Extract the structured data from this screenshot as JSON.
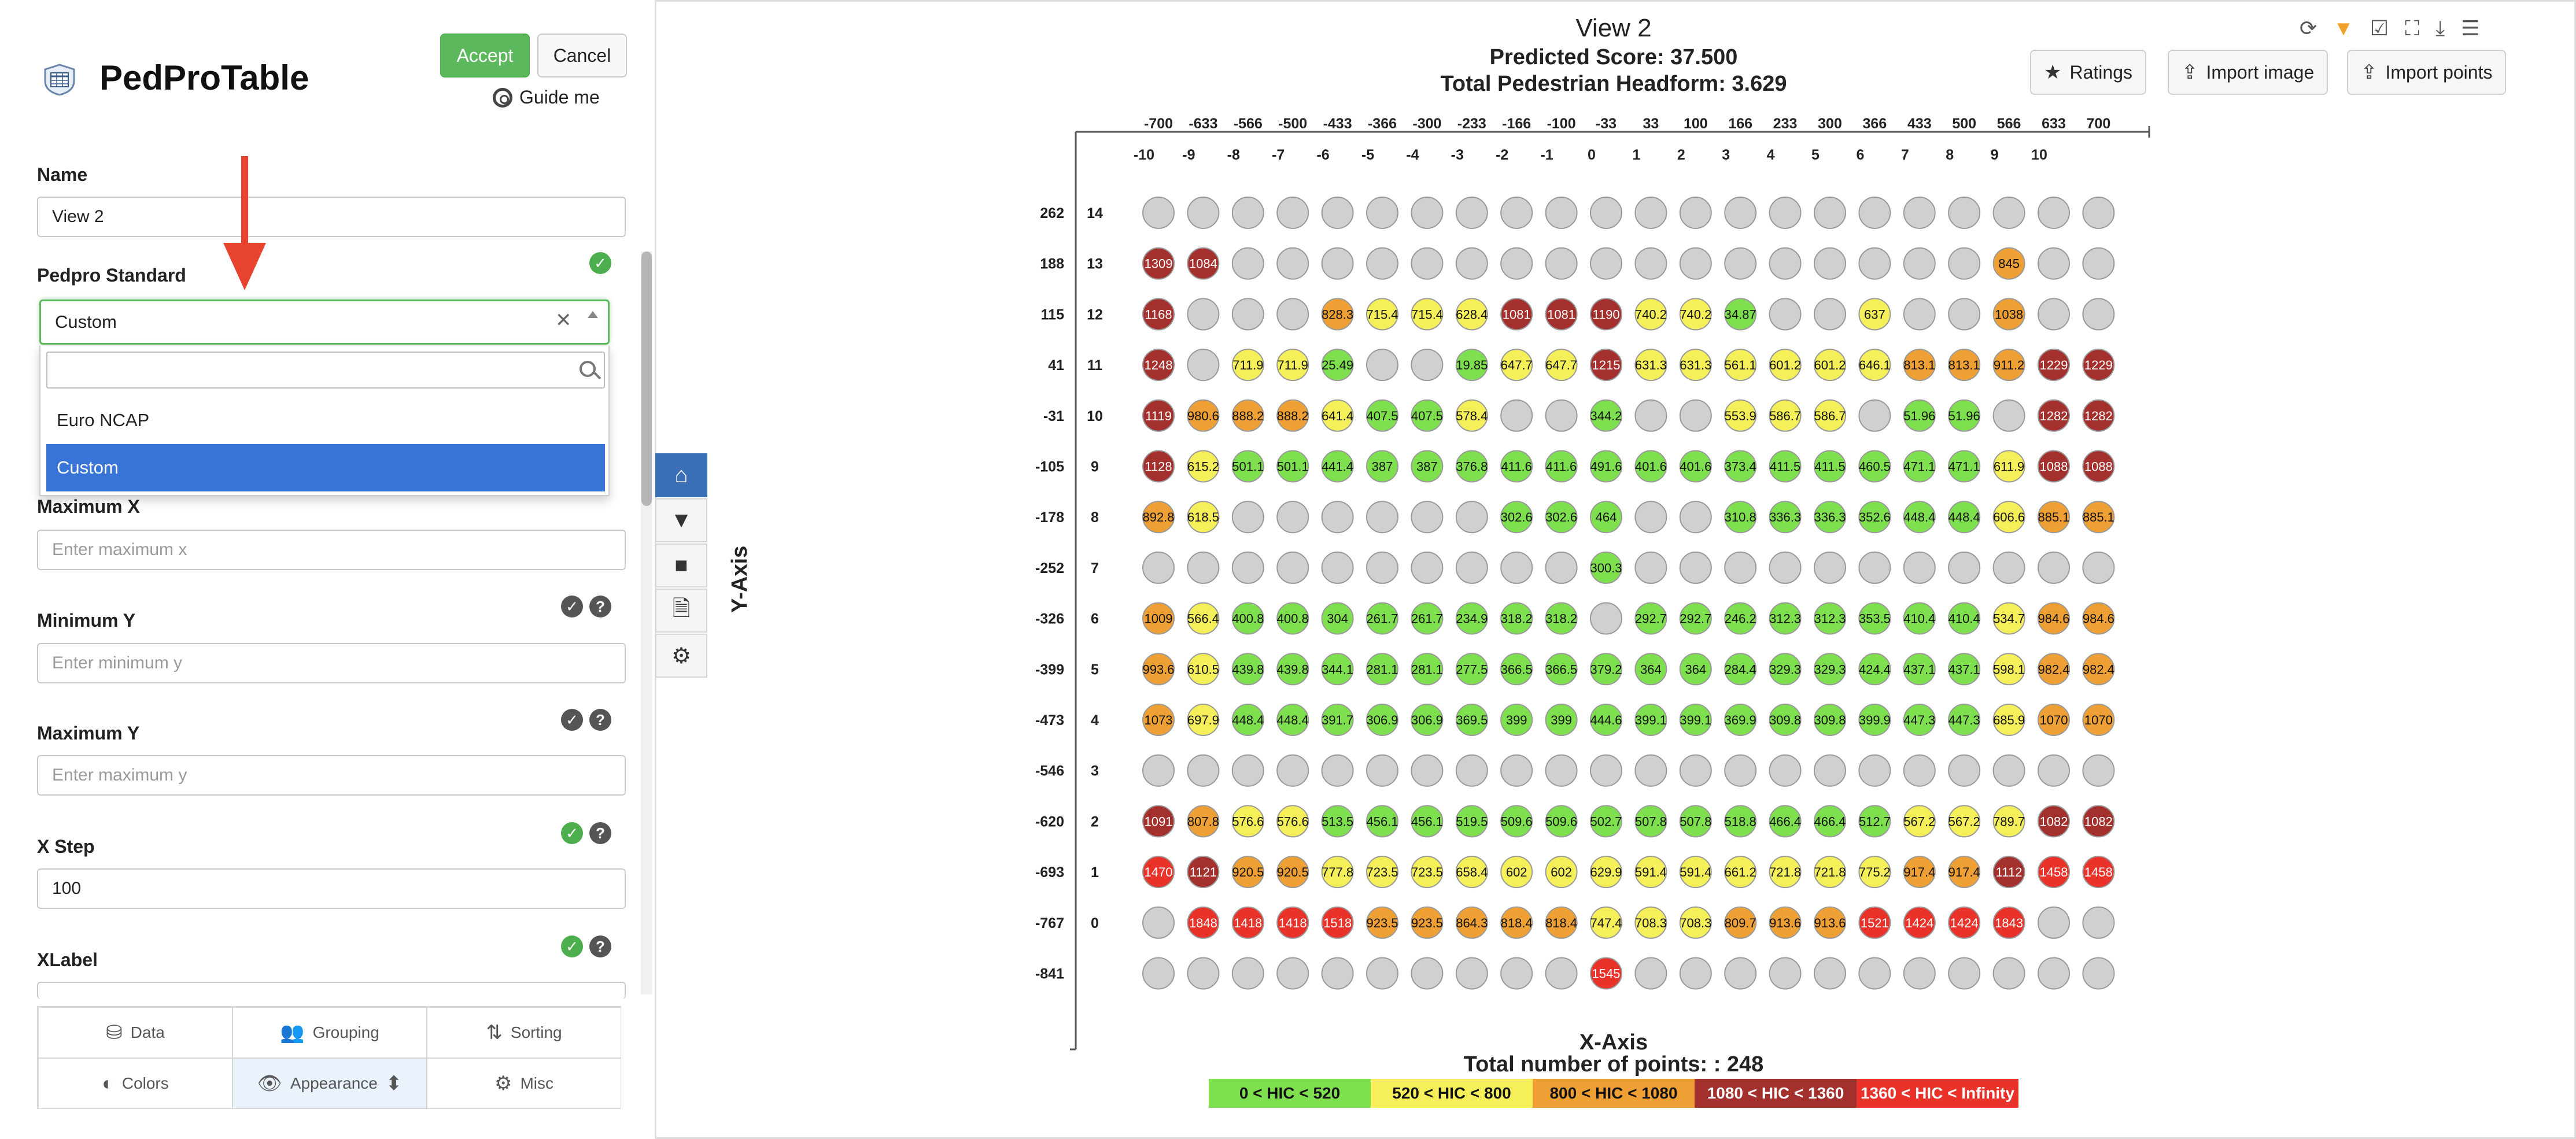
{
  "app": {
    "title": "PedProTable",
    "accept_label": "Accept",
    "cancel_label": "Cancel",
    "guide_label": "Guide me"
  },
  "form": {
    "name_label": "Name",
    "name_value": "View 2",
    "pedpro_label": "Pedpro Standard",
    "pedpro_value": "Custom",
    "dropdown_options": [
      "Euro NCAP",
      "Custom"
    ],
    "dropdown_selected": "Custom",
    "max_x_label": "Maximum X",
    "max_x_placeholder": "Enter maximum x",
    "min_y_label": "Minimum Y",
    "min_y_placeholder": "Enter minimum y",
    "max_y_label": "Maximum Y",
    "max_y_placeholder": "Enter maximum y",
    "x_step_label": "X Step",
    "x_step_value": "100",
    "xlabel_label": "XLabel"
  },
  "bottom_tabs": [
    {
      "label": "Data",
      "icon": "database-icon"
    },
    {
      "label": "Grouping",
      "icon": "users-icon"
    },
    {
      "label": "Sorting",
      "icon": "sort-icon"
    },
    {
      "label": "Colors",
      "icon": "contrast-icon"
    },
    {
      "label": "Appearance",
      "icon": "eye-icon"
    },
    {
      "label": "Misc",
      "icon": "gear-icon"
    }
  ],
  "toolbar_icons": [
    "home-icon",
    "filter-icon",
    "square-icon",
    "document-icon",
    "gear-icon"
  ],
  "header": {
    "view_title": "View 2",
    "predicted_score": "Predicted Score: 37.500",
    "headform": "Total Pedestrian Headform: 3.629",
    "ratings_label": "Ratings",
    "import_image_label": "Import image",
    "import_points_label": "Import points",
    "top_icons": [
      "refresh-icon",
      "filter-icon",
      "checkbox-icon",
      "fullscreen-icon",
      "download-icon",
      "menu-icon"
    ]
  },
  "colors": {
    "green": "#7ee04f",
    "yellow": "#f5f05a",
    "orange": "#eea035",
    "darkred": "#a3302c",
    "red": "#e8322a",
    "gray": "#d0d0d0"
  },
  "chart_data": {
    "type": "scatter",
    "xlabel": "X-Axis",
    "ylabel": "Y-Axis",
    "x_top_labels": [
      "-700",
      "-633",
      "-566",
      "-500",
      "-433",
      "-366",
      "-300",
      "-233",
      "-166",
      "-100",
      "-33",
      "33",
      "100",
      "166",
      "233",
      "300",
      "366",
      "433",
      "500",
      "566",
      "633",
      "700"
    ],
    "x_index_labels": [
      "-10",
      "-9",
      "-8",
      "-7",
      "-6",
      "-5",
      "-4",
      "-3",
      "-2",
      "-1",
      "0",
      "1",
      "2",
      "3",
      "4",
      "5",
      "6",
      "7",
      "8",
      "9",
      "10",
      ""
    ],
    "y_value_labels": [
      "262",
      "188",
      "115",
      "41",
      "-31",
      "-105",
      "-178",
      "-252",
      "-326",
      "-399",
      "-473",
      "-546",
      "-620",
      "-693",
      "-767",
      "-841"
    ],
    "y_index_labels": [
      "14",
      "13",
      "12",
      "11",
      "10",
      "9",
      "8",
      "7",
      "6",
      "5",
      "4",
      "3",
      "2",
      "1",
      "0",
      ""
    ],
    "total_points_label": "Total number of points: : 248",
    "legend": [
      {
        "label": "0 < HIC < 520",
        "color": "green"
      },
      {
        "label": "520 < HIC < 800",
        "color": "yellow"
      },
      {
        "label": "800 < HIC < 1080",
        "color": "orange"
      },
      {
        "label": "1080 < HIC < 1360",
        "color": "darkred"
      },
      {
        "label": "1360 < HIC < Infinity",
        "color": "red"
      }
    ],
    "rows": [
      [
        "",
        "",
        "",
        "",
        "",
        "",
        "",
        "",
        "",
        "",
        "",
        "",
        "",
        "",
        "",
        "",
        "",
        "",
        "",
        "",
        "",
        ""
      ],
      [
        "1309",
        "1084",
        "",
        "",
        "",
        "",
        "",
        "",
        "",
        "",
        "",
        "",
        "",
        "",
        "",
        "",
        "",
        "",
        "",
        "845",
        "",
        ""
      ],
      [
        "1168",
        "",
        "",
        "",
        "828.3",
        "715.4",
        "715.4",
        "628.4",
        "1081",
        "1081",
        "1190",
        "740.2",
        "740.2",
        "34.87",
        "",
        "",
        "637",
        "",
        "",
        "1038",
        "",
        ""
      ],
      [
        "1248",
        "",
        "711.9",
        "711.9",
        "25.49",
        "",
        "",
        "19.85",
        "647.7",
        "647.7",
        "1215",
        "631.3",
        "631.3",
        "561.1",
        "601.2",
        "601.2",
        "646.1",
        "813.1",
        "813.1",
        "911.2",
        "1229",
        "1229"
      ],
      [
        "1119",
        "980.6",
        "888.2",
        "888.2",
        "641.4",
        "407.5",
        "407.5",
        "578.4",
        "",
        "",
        "344.2",
        "",
        "",
        "553.9",
        "586.7",
        "586.7",
        "",
        "51.96",
        "51.96",
        "",
        "1282",
        "1282"
      ],
      [
        "1128",
        "615.2",
        "501.1",
        "501.1",
        "441.4",
        "387",
        "387",
        "376.8",
        "411.6",
        "411.6",
        "491.6",
        "401.6",
        "401.6",
        "373.4",
        "411.5",
        "411.5",
        "460.5",
        "471.1",
        "471.1",
        "611.9",
        "1088",
        "1088"
      ],
      [
        "892.8",
        "618.5",
        "",
        "",
        "",
        "",
        "",
        "",
        "302.6",
        "302.6",
        "464",
        "",
        "",
        "310.8",
        "336.3",
        "336.3",
        "352.6",
        "448.4",
        "448.4",
        "606.6",
        "885.1",
        "885.1"
      ],
      [
        "",
        "",
        "",
        "",
        "",
        "",
        "",
        "",
        "",
        "",
        "300.3",
        "",
        "",
        "",
        "",
        "",
        "",
        "",
        "",
        "",
        "",
        ""
      ],
      [
        "1009",
        "566.4",
        "400.8",
        "400.8",
        "304",
        "261.7",
        "261.7",
        "234.9",
        "318.2",
        "318.2",
        "",
        "292.7",
        "292.7",
        "246.2",
        "312.3",
        "312.3",
        "353.5",
        "410.4",
        "410.4",
        "534.7",
        "984.6",
        "984.6"
      ],
      [
        "993.6",
        "610.5",
        "439.8",
        "439.8",
        "344.1",
        "281.1",
        "281.1",
        "277.5",
        "366.5",
        "366.5",
        "379.2",
        "364",
        "364",
        "284.4",
        "329.3",
        "329.3",
        "424.4",
        "437.1",
        "437.1",
        "598.1",
        "982.4",
        "982.4"
      ],
      [
        "1073",
        "697.9",
        "448.4",
        "448.4",
        "391.7",
        "306.9",
        "306.9",
        "369.5",
        "399",
        "399",
        "444.6",
        "399.1",
        "399.1",
        "369.9",
        "309.8",
        "309.8",
        "399.9",
        "447.3",
        "447.3",
        "685.9",
        "1070",
        "1070"
      ],
      [
        "",
        "",
        "",
        "",
        "",
        "",
        "",
        "",
        "",
        "",
        "",
        "",
        "",
        "",
        "",
        "",
        "",
        "",
        "",
        "",
        "",
        ""
      ],
      [
        "1091",
        "807.8",
        "576.6",
        "576.6",
        "513.5",
        "456.1",
        "456.1",
        "519.5",
        "509.6",
        "509.6",
        "502.7",
        "507.8",
        "507.8",
        "518.8",
        "466.4",
        "466.4",
        "512.7",
        "567.2",
        "567.2",
        "789.7",
        "1082",
        "1082"
      ],
      [
        "1470",
        "1121",
        "920.5",
        "920.5",
        "777.8",
        "723.5",
        "723.5",
        "658.4",
        "602",
        "602",
        "629.9",
        "591.4",
        "591.4",
        "661.2",
        "721.8",
        "721.8",
        "775.2",
        "917.4",
        "917.4",
        "1112",
        "1458",
        "1458"
      ],
      [
        "",
        "1848",
        "1418",
        "1418",
        "1518",
        "923.5",
        "923.5",
        "864.3",
        "818.4",
        "818.4",
        "747.4",
        "708.3",
        "708.3",
        "809.7",
        "913.6",
        "913.6",
        "1521",
        "1424",
        "1424",
        "1843",
        "",
        ""
      ],
      [
        "",
        "",
        "",
        "",
        "",
        "",
        "",
        "",
        "",
        "",
        "1545",
        "",
        "",
        "",
        "",
        "",
        "",
        "",
        "",
        "",
        "",
        ""
      ]
    ]
  }
}
